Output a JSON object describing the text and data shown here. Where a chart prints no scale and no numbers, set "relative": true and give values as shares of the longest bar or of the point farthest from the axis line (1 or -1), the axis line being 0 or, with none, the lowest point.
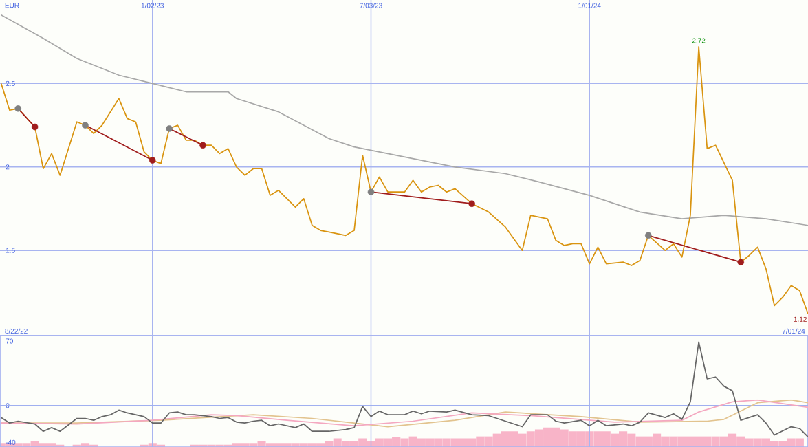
{
  "chart_data": [
    {
      "type": "line",
      "ylabel": "EUR",
      "xlim": [
        "2022-08-28",
        "2024-07-01"
      ],
      "ylim": [
        0.99,
        3.0
      ],
      "xticks": [
        {
          "value": "2023-01-02",
          "label": "1/02/23"
        },
        {
          "value": "2023-07-03",
          "label": "7/03/23"
        },
        {
          "value": "2024-01-01",
          "label": "1/01/24"
        }
      ],
      "yticks": [
        1.5,
        2,
        2.5
      ],
      "grid": true,
      "annotations": [
        "8/22/22",
        "7/01/24",
        {
          "text": "2.72",
          "x": "2024-04-01",
          "y": 2.72
        },
        {
          "text": "1.12",
          "x": "2024-07-01",
          "y": 1.12
        }
      ],
      "series": [
        {
          "color": "#a8a8a8",
          "x": [
            "2022-08-29",
            "2022-10-03",
            "2022-10-31",
            "2022-11-21",
            "2022-12-05",
            "2023-01-02",
            "2023-01-30",
            "2023-02-20",
            "2023-03-06",
            "2023-03-13",
            "2023-04-17",
            "2023-05-29",
            "2023-06-19",
            "2023-07-17",
            "2023-08-14",
            "2023-09-11",
            "2023-10-23",
            "2023-11-20",
            "2024-01-01",
            "2024-02-12",
            "2024-03-18",
            "2024-04-22",
            "2024-05-27",
            "2024-07-01"
          ],
          "values": [
            2.91,
            2.77,
            2.65,
            2.59,
            2.55,
            2.5,
            2.45,
            2.45,
            2.45,
            2.41,
            2.33,
            2.17,
            2.12,
            2.08,
            2.04,
            2.0,
            1.96,
            1.91,
            1.83,
            1.73,
            1.69,
            1.71,
            1.69,
            1.65
          ]
        },
        {
          "color": "#d99410",
          "x": [
            "2022-08-29",
            "2022-09-05",
            "2022-09-12",
            "2022-09-26",
            "2022-10-03",
            "2022-10-10",
            "2022-10-17",
            "2022-10-31",
            "2022-11-07",
            "2022-11-14",
            "2022-11-21",
            "2022-12-05",
            "2022-12-12",
            "2022-12-19",
            "2022-12-26",
            "2023-01-02",
            "2023-01-09",
            "2023-01-16",
            "2023-01-23",
            "2023-01-30",
            "2023-02-06",
            "2023-02-13",
            "2023-02-20",
            "2023-02-27",
            "2023-03-06",
            "2023-03-13",
            "2023-03-20",
            "2023-03-27",
            "2023-04-03",
            "2023-04-10",
            "2023-04-17",
            "2023-04-24",
            "2023-05-01",
            "2023-05-08",
            "2023-05-15",
            "2023-05-22",
            "2023-05-29",
            "2023-06-12",
            "2023-06-19",
            "2023-06-26",
            "2023-07-03",
            "2023-07-10",
            "2023-07-17",
            "2023-07-24",
            "2023-07-31",
            "2023-08-07",
            "2023-08-14",
            "2023-08-21",
            "2023-08-28",
            "2023-09-04",
            "2023-09-11",
            "2023-09-25",
            "2023-10-09",
            "2023-10-23",
            "2023-11-06",
            "2023-11-13",
            "2023-11-27",
            "2023-12-04",
            "2023-12-11",
            "2023-12-18",
            "2023-12-25",
            "2024-01-01",
            "2024-01-08",
            "2024-01-15",
            "2024-01-29",
            "2024-02-05",
            "2024-02-12",
            "2024-02-19",
            "2024-03-04",
            "2024-03-11",
            "2024-03-18",
            "2024-03-25",
            "2024-04-01",
            "2024-04-08",
            "2024-04-15",
            "2024-04-29",
            "2024-05-06",
            "2024-05-13",
            "2024-05-20",
            "2024-05-27",
            "2024-06-03",
            "2024-06-10",
            "2024-06-17",
            "2024-06-24",
            "2024-07-01"
          ],
          "values": [
            2.5,
            2.34,
            2.35,
            2.24,
            1.99,
            2.08,
            1.95,
            2.27,
            2.25,
            2.2,
            2.25,
            2.41,
            2.29,
            2.27,
            2.09,
            2.04,
            2.02,
            2.23,
            2.25,
            2.16,
            2.16,
            2.13,
            2.13,
            2.08,
            2.11,
            2.0,
            1.95,
            1.99,
            1.99,
            1.83,
            1.86,
            1.81,
            1.76,
            1.81,
            1.65,
            1.62,
            1.61,
            1.59,
            1.62,
            2.07,
            1.85,
            1.94,
            1.85,
            1.85,
            1.85,
            1.92,
            1.85,
            1.88,
            1.89,
            1.85,
            1.87,
            1.78,
            1.73,
            1.64,
            1.5,
            1.71,
            1.69,
            1.56,
            1.53,
            1.54,
            1.54,
            1.42,
            1.52,
            1.42,
            1.43,
            1.41,
            1.44,
            1.59,
            1.5,
            1.54,
            1.46,
            1.71,
            2.72,
            2.11,
            2.13,
            1.92,
            1.43,
            1.47,
            1.52,
            1.39,
            1.17,
            1.22,
            1.29,
            1.26,
            1.12
          ]
        },
        {
          "color": "#a01c1c",
          "marker": "circle",
          "colors": [
            "#808080",
            "#a01c1c"
          ],
          "x": [
            "2022-09-12",
            "2022-09-26"
          ],
          "values": [
            2.35,
            2.24
          ]
        },
        {
          "color": "#a01c1c",
          "marker": "circle",
          "colors": [
            "#808080",
            "#a01c1c"
          ],
          "x": [
            "2022-11-07",
            "2023-01-02"
          ],
          "values": [
            2.25,
            2.04
          ]
        },
        {
          "color": "#a01c1c",
          "marker": "circle",
          "colors": [
            "#808080",
            "#a01c1c"
          ],
          "x": [
            "2023-01-16",
            "2023-02-13"
          ],
          "values": [
            2.23,
            2.13
          ]
        },
        {
          "color": "#a01c1c",
          "marker": "circle",
          "colors": [
            "#808080",
            "#a01c1c"
          ],
          "x": [
            "2023-07-03",
            "2023-09-25"
          ],
          "values": [
            1.85,
            1.78
          ]
        },
        {
          "color": "#a01c1c",
          "marker": "circle",
          "colors": [
            "#808080",
            "#a01c1c"
          ],
          "x": [
            "2024-02-19",
            "2024-05-06"
          ],
          "values": [
            1.59,
            1.43
          ]
        }
      ]
    },
    {
      "type": "line",
      "xlim": [
        "2022-08-28",
        "2024-07-01"
      ],
      "ylim": [
        -45,
        76
      ],
      "xticks": [
        {
          "value": "2023-01-02",
          "label": null
        },
        {
          "value": "2023-07-03",
          "label": null
        },
        {
          "value": "2024-01-01",
          "label": null
        }
      ],
      "yticks": [
        -40,
        0,
        70
      ],
      "tick_labels": "y",
      "grid": "x",
      "ref_lines": [
        {
          "axis": "y",
          "value": 0,
          "color": "#a0b0f0"
        }
      ],
      "series": [
        {
          "type": "line",
          "color": "#e2c38e",
          "x": [
            "2022-08-29",
            "2022-10-03",
            "2022-10-31",
            "2023-01-09",
            "2023-03-27",
            "2023-05-15",
            "2023-07-17",
            "2023-09-11",
            "2023-10-23",
            "2023-12-25",
            "2024-02-12",
            "2024-04-08",
            "2024-04-22",
            "2024-05-20",
            "2024-06-17",
            "2024-07-01"
          ],
          "values": [
            -19,
            -19,
            -19,
            -16,
            -10,
            -14,
            -23,
            -16,
            -7,
            -12,
            -18,
            -17,
            -15,
            3,
            6,
            3
          ]
        },
        {
          "type": "line",
          "color": "#f4a8c0",
          "x": [
            "2022-08-29",
            "2022-10-31",
            "2023-01-02",
            "2023-02-20",
            "2023-03-13",
            "2023-04-24",
            "2023-06-19",
            "2023-08-07",
            "2023-09-25",
            "2023-11-13",
            "2024-01-22",
            "2024-03-18",
            "2024-04-01",
            "2024-04-29",
            "2024-05-20",
            "2024-07-01"
          ],
          "values": [
            -19,
            -20,
            -16,
            -10,
            -11,
            -16,
            -22,
            -17,
            -8,
            -11,
            -18,
            -16,
            -7,
            4,
            6,
            -2
          ]
        },
        {
          "color": "#666666",
          "x": [
            "2022-08-29",
            "2022-09-05",
            "2022-09-12",
            "2022-09-26",
            "2022-10-03",
            "2022-10-10",
            "2022-10-17",
            "2022-10-31",
            "2022-11-07",
            "2022-11-14",
            "2022-11-21",
            "2022-11-28",
            "2022-12-05",
            "2022-12-12",
            "2022-12-26",
            "2023-01-02",
            "2023-01-09",
            "2023-01-16",
            "2023-01-23",
            "2023-01-30",
            "2023-02-06",
            "2023-02-20",
            "2023-02-27",
            "2023-03-06",
            "2023-03-13",
            "2023-03-20",
            "2023-03-27",
            "2023-04-03",
            "2023-04-10",
            "2023-04-17",
            "2023-05-01",
            "2023-05-08",
            "2023-05-15",
            "2023-05-29",
            "2023-06-12",
            "2023-06-19",
            "2023-06-26",
            "2023-07-03",
            "2023-07-10",
            "2023-07-17",
            "2023-07-24",
            "2023-07-31",
            "2023-08-07",
            "2023-08-14",
            "2023-08-21",
            "2023-09-04",
            "2023-09-11",
            "2023-09-25",
            "2023-10-09",
            "2023-11-06",
            "2023-11-13",
            "2023-11-27",
            "2023-12-04",
            "2023-12-11",
            "2023-12-25",
            "2024-01-01",
            "2024-01-08",
            "2024-01-15",
            "2024-01-29",
            "2024-02-05",
            "2024-02-12",
            "2024-02-19",
            "2024-03-04",
            "2024-03-11",
            "2024-03-18",
            "2024-03-25",
            "2024-04-01",
            "2024-04-08",
            "2024-04-15",
            "2024-04-22",
            "2024-04-29",
            "2024-05-06",
            "2024-05-20",
            "2024-05-27",
            "2024-06-03",
            "2024-06-17",
            "2024-06-24",
            "2024-07-01"
          ],
          "values": [
            -13,
            -19,
            -17,
            -20,
            -28,
            -24,
            -28,
            -14,
            -14,
            -16,
            -12,
            -10,
            -5,
            -8,
            -12,
            -19,
            -19,
            -8,
            -7,
            -10,
            -10,
            -12,
            -14,
            -13,
            -18,
            -19,
            -17,
            -16,
            -22,
            -20,
            -24,
            -20,
            -28,
            -28,
            -26,
            -24,
            -1,
            -12,
            -6,
            -10,
            -10,
            -10,
            -6,
            -9,
            -6,
            -7,
            -5,
            -10,
            -11,
            -23,
            -10,
            -10,
            -17,
            -19,
            -16,
            -22,
            -16,
            -22,
            -20,
            -22,
            -18,
            -8,
            -13,
            -9,
            -15,
            4,
            69,
            29,
            31,
            21,
            16,
            -16,
            -10,
            -19,
            -32,
            -23,
            -25,
            -34
          ]
        }
      ]
    },
    {
      "type": "bar",
      "relative": true,
      "xlim": [
        "2022-08-28",
        "2024-07-01"
      ],
      "tick_labels": false,
      "series": [
        {
          "color": "#f8b4c8",
          "x": [
            "2022-08-29",
            "2022-09-05",
            "2022-09-12",
            "2022-09-19",
            "2022-09-26",
            "2022-10-03",
            "2022-10-10",
            "2022-10-17",
            "2022-10-24",
            "2022-10-31",
            "2022-11-07",
            "2022-11-14",
            "2022-11-21",
            "2022-11-28",
            "2022-12-05",
            "2022-12-12",
            "2022-12-19",
            "2022-12-26",
            "2023-01-02",
            "2023-01-09",
            "2023-01-16",
            "2023-01-23",
            "2023-01-30",
            "2023-02-06",
            "2023-02-13",
            "2023-02-20",
            "2023-02-27",
            "2023-03-06",
            "2023-03-13",
            "2023-03-20",
            "2023-03-27",
            "2023-04-03",
            "2023-04-10",
            "2023-04-17",
            "2023-04-24",
            "2023-05-01",
            "2023-05-08",
            "2023-05-15",
            "2023-05-22",
            "2023-05-29",
            "2023-06-05",
            "2023-06-12",
            "2023-06-19",
            "2023-06-26",
            "2023-07-03",
            "2023-07-10",
            "2023-07-17",
            "2023-07-24",
            "2023-07-31",
            "2023-08-07",
            "2023-08-14",
            "2023-08-21",
            "2023-08-28",
            "2023-09-04",
            "2023-09-11",
            "2023-09-18",
            "2023-09-25",
            "2023-10-02",
            "2023-10-09",
            "2023-10-16",
            "2023-10-23",
            "2023-10-30",
            "2023-11-06",
            "2023-11-13",
            "2023-11-20",
            "2023-11-27",
            "2023-12-04",
            "2023-12-11",
            "2023-12-18",
            "2023-12-25",
            "2024-01-01",
            "2024-01-08",
            "2024-01-15",
            "2024-01-22",
            "2024-01-29",
            "2024-02-05",
            "2024-02-12",
            "2024-02-19",
            "2024-02-26",
            "2024-03-04",
            "2024-03-11",
            "2024-03-18",
            "2024-03-25",
            "2024-04-01",
            "2024-04-08",
            "2024-04-15",
            "2024-04-22",
            "2024-04-29",
            "2024-05-06",
            "2024-05-13",
            "2024-05-20",
            "2024-05-27",
            "2024-06-03",
            "2024-06-10",
            "2024-06-17",
            "2024-06-24"
          ],
          "values": [
            0.2,
            0.2,
            0.2,
            0.2,
            0.32,
            0.2,
            0.2,
            0.12,
            null,
            0.12,
            0.2,
            0.12,
            null,
            null,
            null,
            null,
            null,
            0.12,
            0.2,
            0.12,
            null,
            null,
            null,
            0.12,
            0.12,
            0.12,
            0.12,
            0.12,
            0.2,
            0.2,
            0.2,
            0.32,
            0.2,
            0.2,
            0.2,
            0.2,
            0.2,
            0.2,
            0.2,
            0.32,
            0.44,
            0.32,
            0.32,
            0.44,
            0.32,
            0.44,
            0.44,
            0.53,
            0.44,
            0.55,
            0.44,
            0.44,
            0.44,
            0.44,
            0.44,
            0.44,
            0.44,
            0.55,
            0.55,
            0.69,
            0.8,
            0.8,
            0.69,
            0.8,
            0.9,
            1,
            1,
            0.9,
            0.8,
            0.8,
            0.8,
            0.8,
            0.8,
            0.69,
            0.8,
            0.69,
            0.55,
            0.55,
            0.69,
            0.55,
            0.55,
            0.55,
            0.55,
            0.55,
            0.55,
            0.55,
            0.55,
            0.69,
            0.55,
            0.44,
            0.44,
            0.44,
            0.32,
            0.32,
            0.44,
            0.44
          ]
        }
      ]
    }
  ]
}
